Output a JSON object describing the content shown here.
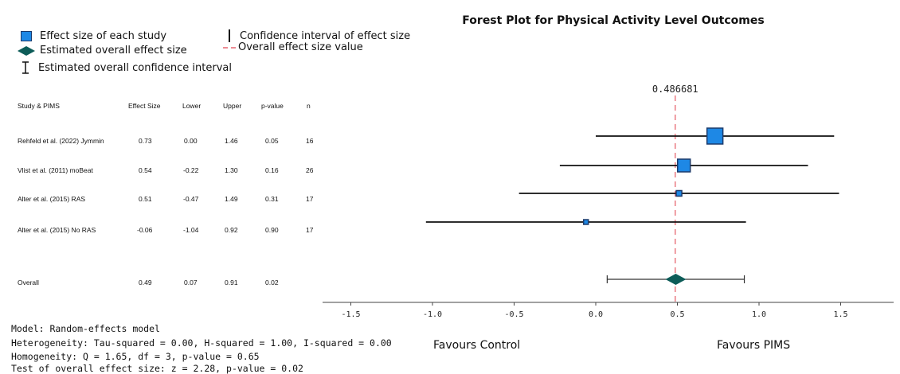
{
  "legend": {
    "effect_size_each": "Effect size of each study",
    "overall_effect": "Estimated overall effect size",
    "overall_ci": "Estimated overall confidence interval",
    "ci_each": "Confidence interval of effect size",
    "overall_value": "Overall effect size value"
  },
  "table": {
    "headers": [
      "Study & PIMS",
      "Effect Size",
      "Lower",
      "Upper",
      "p-value",
      "n"
    ],
    "rows": [
      [
        "Rehfeld et al. (2022) Jymmin",
        "0.73",
        "0.00",
        "1.46",
        "0.05",
        "16"
      ],
      [
        "Vlist et al. (2011) moBeat",
        "0.54",
        "-0.22",
        "1.30",
        "0.16",
        "26"
      ],
      [
        "Alter et al. (2015) RAS",
        "0.51",
        "-0.47",
        "1.49",
        "0.31",
        "17"
      ],
      [
        "Alter et al. (2015) No RAS",
        "-0.06",
        "-1.04",
        "0.92",
        "0.90",
        "17"
      ],
      [
        "Overall",
        "0.49",
        "0.07",
        "0.91",
        "0.02",
        ""
      ]
    ]
  },
  "stats": {
    "model": "Model: Random-effects model",
    "heterogeneity": "Heterogeneity: Tau-squared = 0.00, H-squared = 1.00, I-squared = 0.00",
    "homogeneity": "Homogeneity: Q = 1.65, df = 3, p-value = 0.65",
    "test": "Test of overall effect size: z = 2.28, p-value = 0.02"
  },
  "favours": {
    "left": "Favours Control",
    "right": "Favours PIMS"
  },
  "colors": {
    "square": "#1e88e5",
    "square_border": "#1b3a6b",
    "diamond": "#0d5c58",
    "ref_line": "#e8707a",
    "ci": "#111111"
  },
  "chart_data": {
    "type": "forest",
    "title": "Forest Plot for Physical Activity Level Outcomes",
    "xlim": [
      -1.75,
      1.8
    ],
    "ticks": [
      -1.5,
      -1.0,
      -0.5,
      0.0,
      0.5,
      1.0,
      1.5
    ],
    "tick_labels": [
      "-1.5",
      "-1.0",
      "-0.5",
      "0.0",
      "0.5",
      "1.0",
      "1.5"
    ],
    "reference_value": 0.486681,
    "reference_label": "0.486681",
    "studies": [
      {
        "name": "Rehfeld et al. (2022) Jymmin",
        "effect": 0.73,
        "lower": 0.0,
        "upper": 1.46,
        "n": 16
      },
      {
        "name": "Vlist et al. (2011) moBeat",
        "effect": 0.54,
        "lower": -0.22,
        "upper": 1.3,
        "n": 26
      },
      {
        "name": "Alter et al. (2015) RAS",
        "effect": 0.51,
        "lower": -0.47,
        "upper": 1.49,
        "n": 17
      },
      {
        "name": "Alter et al. (2015) No RAS",
        "effect": -0.06,
        "lower": -1.04,
        "upper": 0.92,
        "n": 17
      }
    ],
    "overall": {
      "effect": 0.49,
      "lower": 0.07,
      "upper": 0.91
    }
  }
}
